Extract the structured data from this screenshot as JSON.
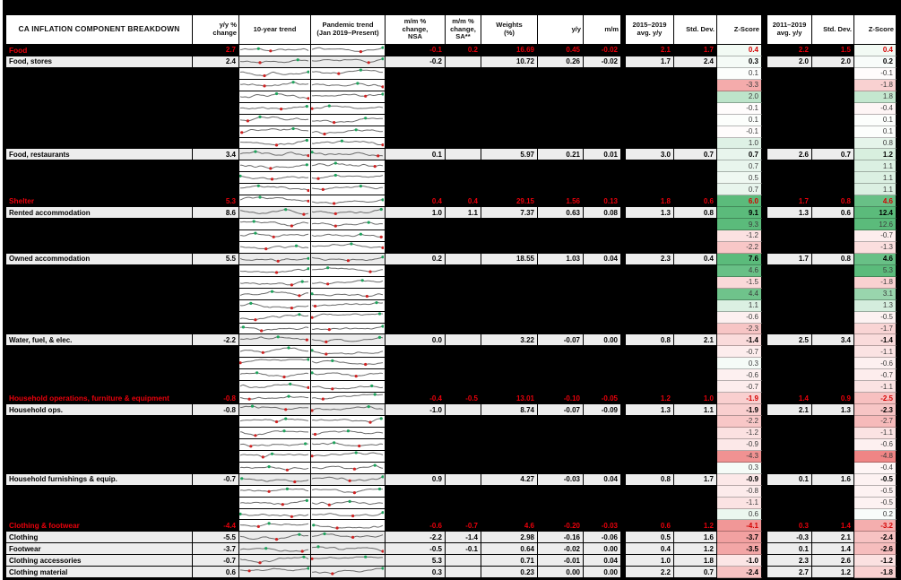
{
  "header": {
    "title": "CA INFLATION COMPONENT BREAKDOWN",
    "yy_change": "y/y %\nchange",
    "trend10": "10-year trend",
    "pandemic": "Pandemic trend\n(Jan 2019–Present)",
    "mm_nsa": "m/m %\nchange,\nNSA",
    "mm_sa": "m/m %\nchange,\nSA**",
    "weights": "Weights\n(%)",
    "yy": "y/y",
    "mm": "m/m",
    "avg1": "2015–2019\navg. y/y",
    "std1": "Std. Dev.",
    "z1": "Z-Score",
    "avg2": "2011–2019\navg. y/y",
    "std2": "Std. Dev.",
    "z2": "Z-Score"
  },
  "colors": {
    "category_text": "#e8000b",
    "zscore_positive_max": "#5bbb7b",
    "zscore_negative_max": "#ee8080",
    "zscore_neutral": "#ffffff",
    "item_row_bg": "#ededed",
    "redacted_bg": "#000000",
    "spark_line": "#6b6b6b",
    "spark_max_dot": "#1ea35c",
    "spark_min_dot": "#cf2222"
  },
  "chart_data": {
    "type": "table",
    "title": "CA INFLATION COMPONENT BREAKDOWN",
    "zscore_color_scale": {
      "min": -5,
      "mid": 0,
      "max": 5
    },
    "rows": [
      {
        "type": "category",
        "label": "Food",
        "yyc": "2.7",
        "nsa": "-0.1",
        "sa": "0.2",
        "wt": "16.69",
        "yy": "0.45",
        "mm": "-0.02",
        "a1": "2.1",
        "s1": "1.7",
        "z1": "0.4",
        "a2": "2.2",
        "s2": "1.5",
        "z2": "0.4"
      },
      {
        "type": "item",
        "label": "Food, stores",
        "yyc": "2.4",
        "nsa": "-0.2",
        "sa": "",
        "wt": "10.72",
        "yy": "0.26",
        "mm": "-0.02",
        "a1": "1.7",
        "s1": "2.4",
        "z1": "0.3",
        "a2": "2.0",
        "s2": "2.0",
        "z2": "0.2"
      },
      {
        "type": "redacted",
        "z1": "0.1",
        "z2": "-0.1"
      },
      {
        "type": "redacted",
        "z1": "-3.3",
        "z2": "-1.8"
      },
      {
        "type": "redacted",
        "z1": "2.0",
        "z2": "1.8"
      },
      {
        "type": "redacted",
        "z1": "-0.1",
        "z2": "-0.4"
      },
      {
        "type": "redacted",
        "z1": "0.1",
        "z2": "0.1"
      },
      {
        "type": "redacted",
        "z1": "-0.1",
        "z2": "0.1"
      },
      {
        "type": "redacted",
        "z1": "1.0",
        "z2": "0.8"
      },
      {
        "type": "item",
        "label": "Food, restaurants",
        "yyc": "3.4",
        "nsa": "0.1",
        "sa": "",
        "wt": "5.97",
        "yy": "0.21",
        "mm": "0.01",
        "a1": "3.0",
        "s1": "0.7",
        "z1": "0.7",
        "a2": "2.6",
        "s2": "0.7",
        "z2": "1.2"
      },
      {
        "type": "redacted",
        "z1": "0.7",
        "z2": "1.1"
      },
      {
        "type": "redacted",
        "z1": "0.5",
        "z2": "1.1"
      },
      {
        "type": "redacted",
        "z1": "0.7",
        "z2": "1.1"
      },
      {
        "type": "category",
        "label": "Shelter",
        "yyc": "5.3",
        "nsa": "0.4",
        "sa": "0.4",
        "wt": "29.15",
        "yy": "1.56",
        "mm": "0.13",
        "a1": "1.8",
        "s1": "0.6",
        "z1": "6.0",
        "a2": "1.7",
        "s2": "0.8",
        "z2": "4.6"
      },
      {
        "type": "item",
        "label": "Rented accommodation",
        "yyc": "8.6",
        "nsa": "1.0",
        "sa": "1.1",
        "wt": "7.37",
        "yy": "0.63",
        "mm": "0.08",
        "a1": "1.3",
        "s1": "0.8",
        "z1": "9.1",
        "a2": "1.3",
        "s2": "0.6",
        "z2": "12.4"
      },
      {
        "type": "redacted",
        "z1": "9.3",
        "z2": "12.6"
      },
      {
        "type": "redacted",
        "z1": "-1.2",
        "z2": "-0.7"
      },
      {
        "type": "redacted",
        "z1": "-2.2",
        "z2": "-1.3"
      },
      {
        "type": "item",
        "label": "Owned accommodation",
        "yyc": "5.5",
        "nsa": "0.2",
        "sa": "",
        "wt": "18.55",
        "yy": "1.03",
        "mm": "0.04",
        "a1": "2.3",
        "s1": "0.4",
        "z1": "7.6",
        "a2": "1.7",
        "s2": "0.8",
        "z2": "4.6"
      },
      {
        "type": "redacted",
        "z1": "4.6",
        "z2": "5.3"
      },
      {
        "type": "redacted",
        "z1": "-1.5",
        "z2": "-1.8"
      },
      {
        "type": "redacted",
        "z1": "4.4",
        "z2": "3.1"
      },
      {
        "type": "redacted",
        "z1": "1.1",
        "z2": "1.3"
      },
      {
        "type": "redacted",
        "z1": "-0.6",
        "z2": "-0.5"
      },
      {
        "type": "redacted",
        "z1": "-2.3",
        "z2": "-1.7"
      },
      {
        "type": "item",
        "label": "Water, fuel, & elec.",
        "yyc": "-2.2",
        "nsa": "0.0",
        "sa": "",
        "wt": "3.22",
        "yy": "-0.07",
        "mm": "0.00",
        "a1": "0.8",
        "s1": "2.1",
        "z1": "-1.4",
        "a2": "2.5",
        "s2": "3.4",
        "z2": "-1.4"
      },
      {
        "type": "redacted",
        "z1": "-0.7",
        "z2": "-1.1"
      },
      {
        "type": "redacted",
        "z1": "0.3",
        "z2": "-0.6"
      },
      {
        "type": "redacted",
        "z1": "-0.6",
        "z2": "-0.7"
      },
      {
        "type": "redacted",
        "z1": "-0.7",
        "z2": "-1.1"
      },
      {
        "type": "category",
        "label": "Household operations, furniture & equipment",
        "yyc": "-0.8",
        "nsa": "-0.4",
        "sa": "-0.5",
        "wt": "13.01",
        "yy": "-0.10",
        "mm": "-0.05",
        "a1": "1.2",
        "s1": "1.0",
        "z1": "-1.9",
        "a2": "1.4",
        "s2": "0.9",
        "z2": "-2.5"
      },
      {
        "type": "item",
        "label": "Household ops.",
        "yyc": "-0.8",
        "nsa": "-1.0",
        "sa": "",
        "wt": "8.74",
        "yy": "-0.07",
        "mm": "-0.09",
        "a1": "1.3",
        "s1": "1.1",
        "z1": "-1.9",
        "a2": "2.1",
        "s2": "1.3",
        "z2": "-2.3"
      },
      {
        "type": "redacted",
        "z1": "-2.2",
        "z2": "-2.7"
      },
      {
        "type": "redacted",
        "z1": "-1.2",
        "z2": "-1.1"
      },
      {
        "type": "redacted",
        "z1": "-0.9",
        "z2": "-0.6"
      },
      {
        "type": "redacted",
        "z1": "-4.3",
        "z2": "-4.8"
      },
      {
        "type": "redacted",
        "z1": "0.3",
        "z2": "-0.4"
      },
      {
        "type": "item",
        "label": "Household furnishings & equip.",
        "yyc": "-0.7",
        "nsa": "0.9",
        "sa": "",
        "wt": "4.27",
        "yy": "-0.03",
        "mm": "0.04",
        "a1": "0.8",
        "s1": "1.7",
        "z1": "-0.9",
        "a2": "0.1",
        "s2": "1.6",
        "z2": "-0.5"
      },
      {
        "type": "redacted",
        "z1": "-0.8",
        "z2": "-0.5"
      },
      {
        "type": "redacted",
        "z1": "-1.1",
        "z2": "-0.5"
      },
      {
        "type": "redacted",
        "z1": "0.6",
        "z2": "0.2"
      },
      {
        "type": "category",
        "label": "Clothing & footwear",
        "yyc": "-4.4",
        "nsa": "-0.6",
        "sa": "-0.7",
        "wt": "4.6",
        "yy": "-0.20",
        "mm": "-0.03",
        "a1": "0.6",
        "s1": "1.2",
        "z1": "-4.1",
        "a2": "0.3",
        "s2": "1.4",
        "z2": "-3.2"
      },
      {
        "type": "item",
        "label": "Clothing",
        "yyc": "-5.5",
        "nsa": "-2.2",
        "sa": "-1.4",
        "wt": "2.98",
        "yy": "-0.16",
        "mm": "-0.06",
        "a1": "0.5",
        "s1": "1.6",
        "z1": "-3.7",
        "a2": "-0.3",
        "s2": "2.1",
        "z2": "-2.4"
      },
      {
        "type": "item",
        "label": "Footwear",
        "yyc": "-3.7",
        "nsa": "-0.5",
        "sa": "-0.1",
        "wt": "0.64",
        "yy": "-0.02",
        "mm": "0.00",
        "a1": "0.4",
        "s1": "1.2",
        "z1": "-3.5",
        "a2": "0.1",
        "s2": "1.4",
        "z2": "-2.6"
      },
      {
        "type": "item",
        "label": "Clothing accessories",
        "yyc": "-0.7",
        "nsa": "5.3",
        "sa": "",
        "wt": "0.71",
        "yy": "-0.01",
        "mm": "0.04",
        "a1": "1.0",
        "s1": "1.8",
        "z1": "-1.0",
        "a2": "2.3",
        "s2": "2.6",
        "z2": "-1.2"
      },
      {
        "type": "item",
        "label": "Clothing material",
        "yyc": "0.6",
        "nsa": "0.3",
        "sa": "",
        "wt": "0.23",
        "yy": "0.00",
        "mm": "0.00",
        "a1": "2.2",
        "s1": "0.7",
        "z1": "-2.4",
        "a2": "2.7",
        "s2": "1.2",
        "z2": "-1.8"
      }
    ]
  }
}
